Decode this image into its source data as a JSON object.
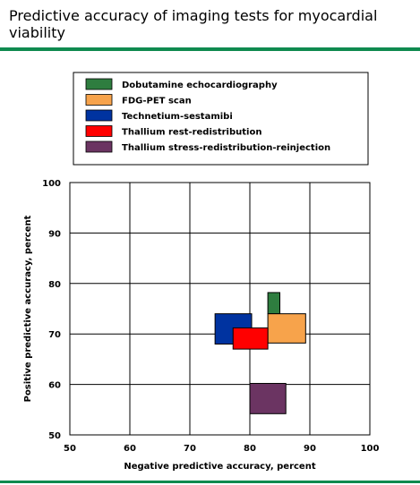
{
  "title": "Predictive accuracy of imaging tests for myocardial viability",
  "colors": {
    "rule": "#0f8a4f",
    "grid": "#000000"
  },
  "chart_data": {
    "type": "range-boxes",
    "title": "Predictive accuracy of imaging tests for myocardial viability",
    "xlabel": "Negative predictive accuracy, percent",
    "ylabel": "Positive predictive accuracy, percent",
    "xlim": [
      50,
      100
    ],
    "ylim": [
      50,
      100
    ],
    "xticks": [
      "50",
      "60",
      "70",
      "80",
      "90",
      "100"
    ],
    "yticks": [
      "50",
      "60",
      "70",
      "80",
      "90",
      "100"
    ],
    "grid": true,
    "legend_position": "top",
    "series": [
      {
        "name": "Dobutamine echocardiography",
        "color": "#2e7d3f",
        "x": [
          83,
          85
        ],
        "y": [
          74,
          78.2
        ]
      },
      {
        "name": "FDG-PET scan",
        "color": "#f7a34b",
        "x": [
          83,
          89.3
        ],
        "y": [
          68.2,
          74
        ]
      },
      {
        "name": "Technetium-sestamibi",
        "color": "#0033a0",
        "x": [
          74.2,
          80.3
        ],
        "y": [
          68,
          74
        ]
      },
      {
        "name": "Thallium rest-redistribution",
        "color": "#ff0000",
        "x": [
          77.2,
          83
        ],
        "y": [
          67,
          71.2
        ]
      },
      {
        "name": "Thallium stress-redistribution-reinjection",
        "color": "#6b3462",
        "x": [
          80,
          86
        ],
        "y": [
          54.2,
          60.2
        ]
      }
    ]
  }
}
